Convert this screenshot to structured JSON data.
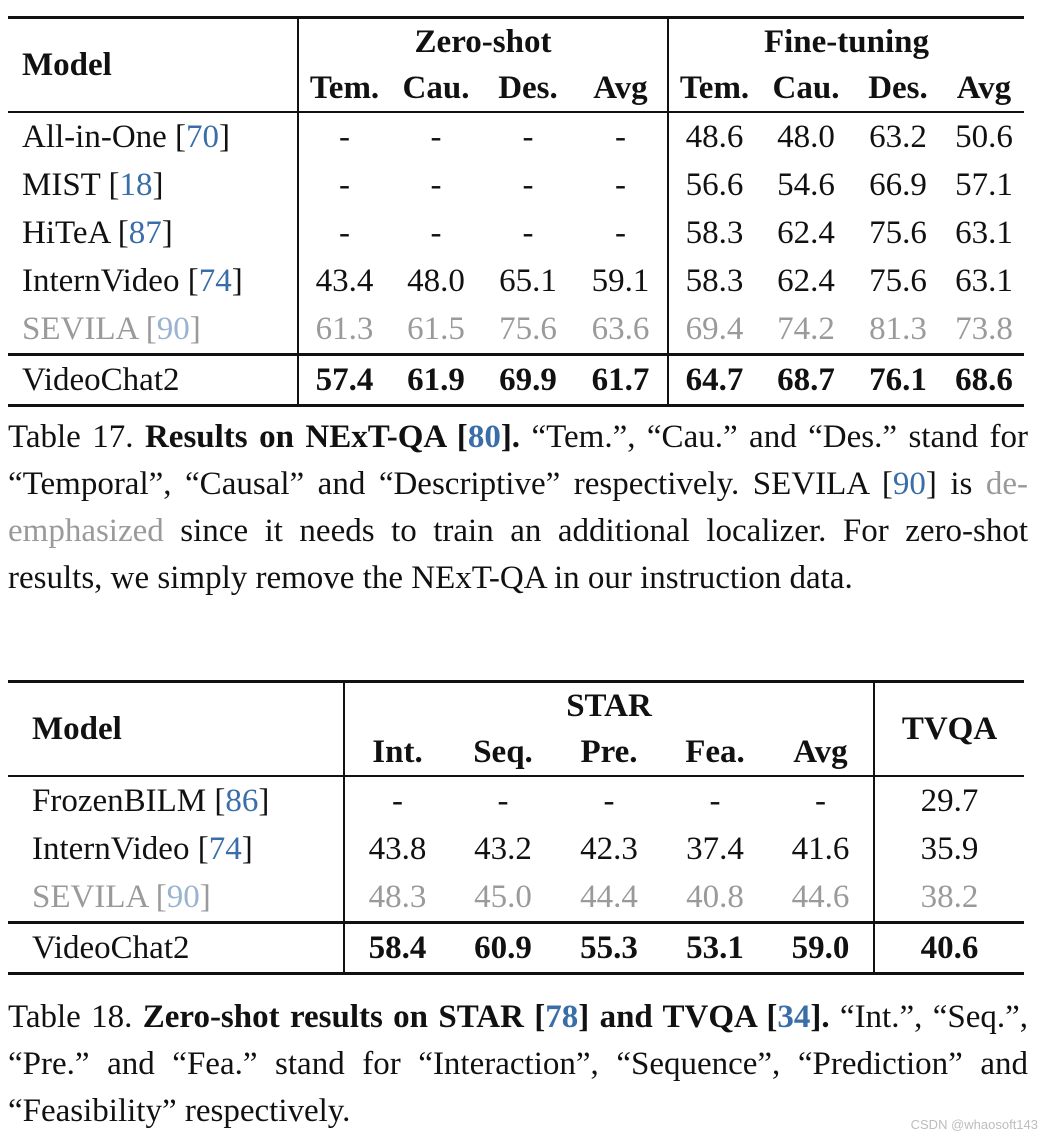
{
  "table17": {
    "model_header": "Model",
    "group1": "Zero-shot",
    "group2": "Fine-tuning",
    "subheaders": [
      "Tem.",
      "Cau.",
      "Des.",
      "Avg",
      "Tem.",
      "Cau.",
      "Des.",
      "Avg"
    ],
    "rows": [
      {
        "model": "All-in-One",
        "cite": "70",
        "values": [
          "-",
          "-",
          "-",
          "-",
          "48.6",
          "48.0",
          "63.2",
          "50.6"
        ]
      },
      {
        "model": "MIST",
        "cite": "18",
        "values": [
          "-",
          "-",
          "-",
          "-",
          "56.6",
          "54.6",
          "66.9",
          "57.1"
        ]
      },
      {
        "model": "HiTeA",
        "cite": "87",
        "values": [
          "-",
          "-",
          "-",
          "-",
          "58.3",
          "62.4",
          "75.6",
          "63.1"
        ]
      },
      {
        "model": "InternVideo",
        "cite": "74",
        "values": [
          "43.4",
          "48.0",
          "65.1",
          "59.1",
          "58.3",
          "62.4",
          "75.6",
          "63.1"
        ]
      },
      {
        "model": "SEVILA",
        "cite": "90",
        "values": [
          "61.3",
          "61.5",
          "75.6",
          "63.6",
          "69.4",
          "74.2",
          "81.3",
          "73.8"
        ]
      },
      {
        "model": "VideoChat2",
        "cite": "",
        "values": [
          "57.4",
          "61.9",
          "69.9",
          "61.7",
          "64.7",
          "68.7",
          "76.1",
          "68.6"
        ]
      }
    ]
  },
  "caption17": {
    "label": "Table 17.",
    "bold_title": "Results on NExT-QA [",
    "bold_cite": "80",
    "bold_end": "].",
    "text1": " “Tem.”, “Cau.” and “Des.” stand for “Temporal”, “Causal” and “Descriptive” respectively. SEVILA [",
    "cite": "90",
    "text2": "] is ",
    "deemph": "de-emphasized",
    "text3": " since it needs to train an additional localizer. For zero-shot results, we simply remove the NExT-QA in our instruction data."
  },
  "table18": {
    "model_header": "Model",
    "group1": "STAR",
    "group2": "TVQA",
    "subheaders": [
      "Int.",
      "Seq.",
      "Pre.",
      "Fea.",
      "Avg"
    ],
    "rows": [
      {
        "model": "FrozenBILM",
        "cite": "86",
        "values": [
          "-",
          "-",
          "-",
          "-",
          "-",
          "29.7"
        ]
      },
      {
        "model": "InternVideo",
        "cite": "74",
        "values": [
          "43.8",
          "43.2",
          "42.3",
          "37.4",
          "41.6",
          "35.9"
        ]
      },
      {
        "model": "SEVILA",
        "cite": "90",
        "values": [
          "48.3",
          "45.0",
          "44.4",
          "40.8",
          "44.6",
          "38.2"
        ]
      },
      {
        "model": "VideoChat2",
        "cite": "",
        "values": [
          "58.4",
          "60.9",
          "55.3",
          "53.1",
          "59.0",
          "40.6"
        ]
      }
    ]
  },
  "caption18": {
    "label": "Table 18.",
    "bold_a": "Zero-shot results on STAR [",
    "cite_a": "78",
    "bold_b": "] and TVQA [",
    "cite_b": "34",
    "bold_c": "].",
    "text": " “Int.”, “Seq.”, “Pre.” and “Fea.” stand for “Interaction”, “Sequence”, “Prediction” and “Feasibility” respectively."
  },
  "watermark": "CSDN @whaosoft143"
}
